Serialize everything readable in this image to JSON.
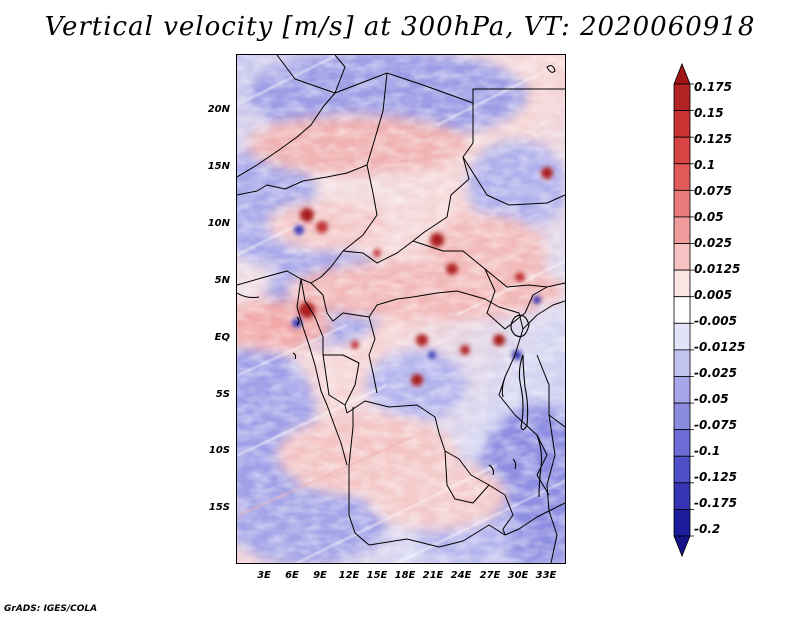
{
  "title": "Vertical velocity [m/s] at 300hPa, VT: 2020060918",
  "credit": "GrADS: IGES/COLA",
  "lat_labels": [
    "20N",
    "15N",
    "10N",
    "5N",
    "EQ",
    "5S",
    "10S",
    "15S"
  ],
  "lon_labels": [
    "3E",
    "6E",
    "9E",
    "12E",
    "15E",
    "18E",
    "21E",
    "24E",
    "27E",
    "30E",
    "33E"
  ],
  "colorbar": {
    "levels": [
      "0.175",
      "0.15",
      "0.125",
      "0.1",
      "0.075",
      "0.05",
      "0.025",
      "0.0125",
      "0.005",
      "-0.005",
      "-0.0125",
      "-0.025",
      "-0.05",
      "-0.075",
      "-0.1",
      "-0.125",
      "-0.175",
      "-0.2"
    ],
    "colors": [
      "#a01414",
      "#b42323",
      "#c83232",
      "#d64444",
      "#e05a5a",
      "#e87a7a",
      "#f09c9c",
      "#f7c2c2",
      "#fbe4e4",
      "#ffffff",
      "#e2e2f8",
      "#c4c4f0",
      "#a6a6e8",
      "#8a8ae0",
      "#6c6cd6",
      "#4e4ec8",
      "#3434b4",
      "#1c1c9c",
      "#14148a"
    ]
  }
}
